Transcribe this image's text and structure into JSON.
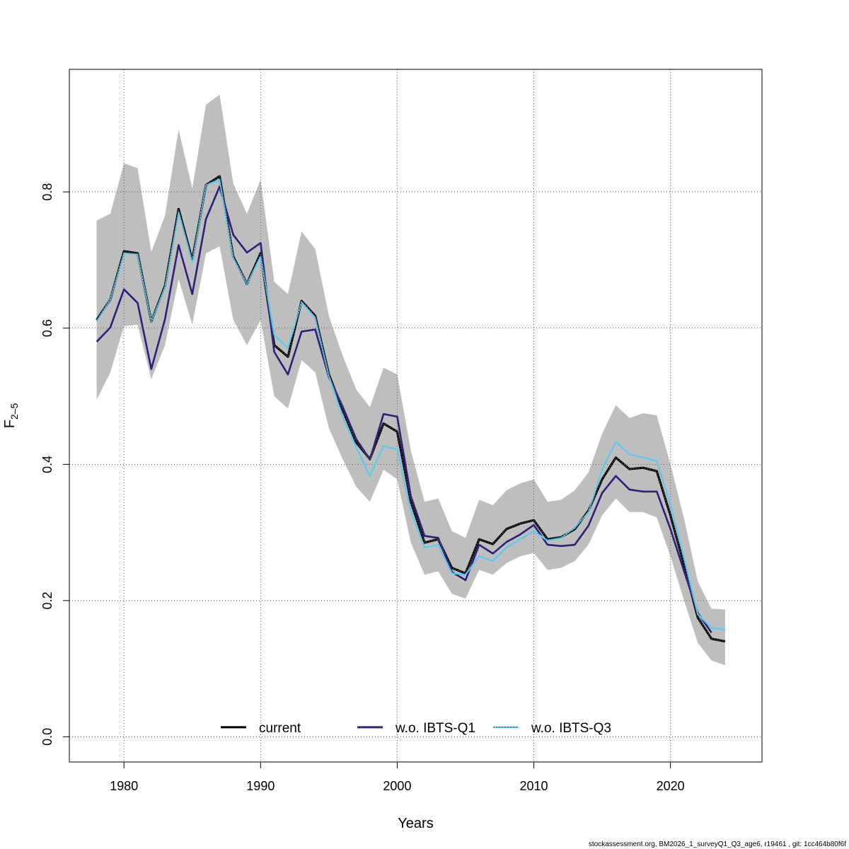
{
  "chart_data": {
    "type": "line",
    "xlabel": "Years",
    "ylabel": "F",
    "ylabel_sub": "2–5",
    "xlim": [
      1976,
      2026.7
    ],
    "ylim": [
      -0.037,
      0.98
    ],
    "x_ticks": [
      1980,
      1990,
      2000,
      2010,
      2020
    ],
    "y_ticks": [
      0.0,
      0.2,
      0.4,
      0.6,
      0.8
    ],
    "x_tick_labels": [
      "1980",
      "1990",
      "2000",
      "2010",
      "2020"
    ],
    "y_tick_labels": [
      "0.0",
      "0.2",
      "0.4",
      "0.6",
      "0.8"
    ],
    "grid": true,
    "legend_position": "bottom",
    "colors": {
      "band": "#bebebe",
      "current": "#000000",
      "q1": "#2e1f7a",
      "q3": "#5bc8f0",
      "grid": "#555555"
    },
    "x": [
      1978,
      1979,
      1980,
      1981,
      1982,
      1983,
      1984,
      1985,
      1986,
      1987,
      1988,
      1989,
      1990,
      1991,
      1992,
      1993,
      1994,
      1995,
      1996,
      1997,
      1998,
      1999,
      2000,
      2001,
      2002,
      2003,
      2004,
      2005,
      2006,
      2007,
      2008,
      2009,
      2010,
      2011,
      2012,
      2013,
      2014,
      2015,
      2016,
      2017,
      2018,
      2019,
      2020,
      2021,
      2022,
      2023,
      2024
    ],
    "band": {
      "lower": [
        0.495,
        0.535,
        0.603,
        0.605,
        0.525,
        0.575,
        0.672,
        0.605,
        0.71,
        0.72,
        0.612,
        0.575,
        0.612,
        0.5,
        0.482,
        0.553,
        0.535,
        0.453,
        0.408,
        0.367,
        0.345,
        0.392,
        0.378,
        0.285,
        0.238,
        0.243,
        0.21,
        0.203,
        0.245,
        0.238,
        0.255,
        0.265,
        0.27,
        0.245,
        0.248,
        0.258,
        0.282,
        0.325,
        0.35,
        0.33,
        0.33,
        0.322,
        0.265,
        0.2,
        0.138,
        0.112,
        0.105
      ],
      "upper": [
        0.758,
        0.768,
        0.842,
        0.835,
        0.712,
        0.765,
        0.892,
        0.805,
        0.928,
        0.943,
        0.812,
        0.768,
        0.818,
        0.668,
        0.65,
        0.742,
        0.716,
        0.618,
        0.56,
        0.51,
        0.484,
        0.542,
        0.532,
        0.42,
        0.345,
        0.35,
        0.302,
        0.292,
        0.348,
        0.34,
        0.362,
        0.372,
        0.378,
        0.345,
        0.348,
        0.362,
        0.388,
        0.445,
        0.487,
        0.468,
        0.475,
        0.472,
        0.4,
        0.32,
        0.228,
        0.188,
        0.187
      ]
    },
    "series": [
      {
        "name": "current",
        "values": [
          0.612,
          0.642,
          0.713,
          0.71,
          0.61,
          0.662,
          0.775,
          0.7,
          0.81,
          0.823,
          0.705,
          0.665,
          0.71,
          0.575,
          0.558,
          0.64,
          0.618,
          0.532,
          0.48,
          0.432,
          0.408,
          0.46,
          0.448,
          0.345,
          0.285,
          0.29,
          0.248,
          0.24,
          0.29,
          0.283,
          0.305,
          0.313,
          0.318,
          0.29,
          0.293,
          0.305,
          0.332,
          0.378,
          0.41,
          0.393,
          0.395,
          0.39,
          0.325,
          0.252,
          0.175,
          0.144,
          0.14
        ]
      },
      {
        "name": "w.o. IBTS-Q1",
        "values": [
          0.58,
          0.601,
          0.657,
          0.637,
          0.54,
          0.613,
          0.722,
          0.65,
          0.76,
          0.808,
          0.737,
          0.711,
          0.725,
          0.565,
          0.532,
          0.595,
          0.598,
          0.528,
          0.485,
          0.437,
          0.407,
          0.474,
          0.47,
          0.353,
          0.295,
          0.292,
          0.242,
          0.23,
          0.282,
          0.269,
          0.286,
          0.297,
          0.311,
          0.282,
          0.28,
          0.282,
          0.31,
          0.358,
          0.383,
          0.363,
          0.36,
          0.36,
          0.305,
          0.243,
          0.182,
          0.153,
          null
        ]
      },
      {
        "name": "w.o. IBTS-Q3",
        "values": [
          0.61,
          0.642,
          0.71,
          0.708,
          0.61,
          0.66,
          0.77,
          0.697,
          0.81,
          0.818,
          0.703,
          0.665,
          0.705,
          0.59,
          0.571,
          0.638,
          0.615,
          0.53,
          0.47,
          0.425,
          0.383,
          0.427,
          0.422,
          0.332,
          0.278,
          0.282,
          0.24,
          0.238,
          0.265,
          0.258,
          0.278,
          0.29,
          0.302,
          0.288,
          0.292,
          0.307,
          0.33,
          0.392,
          0.433,
          0.415,
          0.41,
          0.405,
          0.34,
          0.262,
          0.18,
          0.16,
          0.157
        ]
      }
    ]
  },
  "footer_text": "stockassessment.org, BM2026_1_surveyQ1_Q3_age6, r19461 , git: 1cc464b80f6f"
}
